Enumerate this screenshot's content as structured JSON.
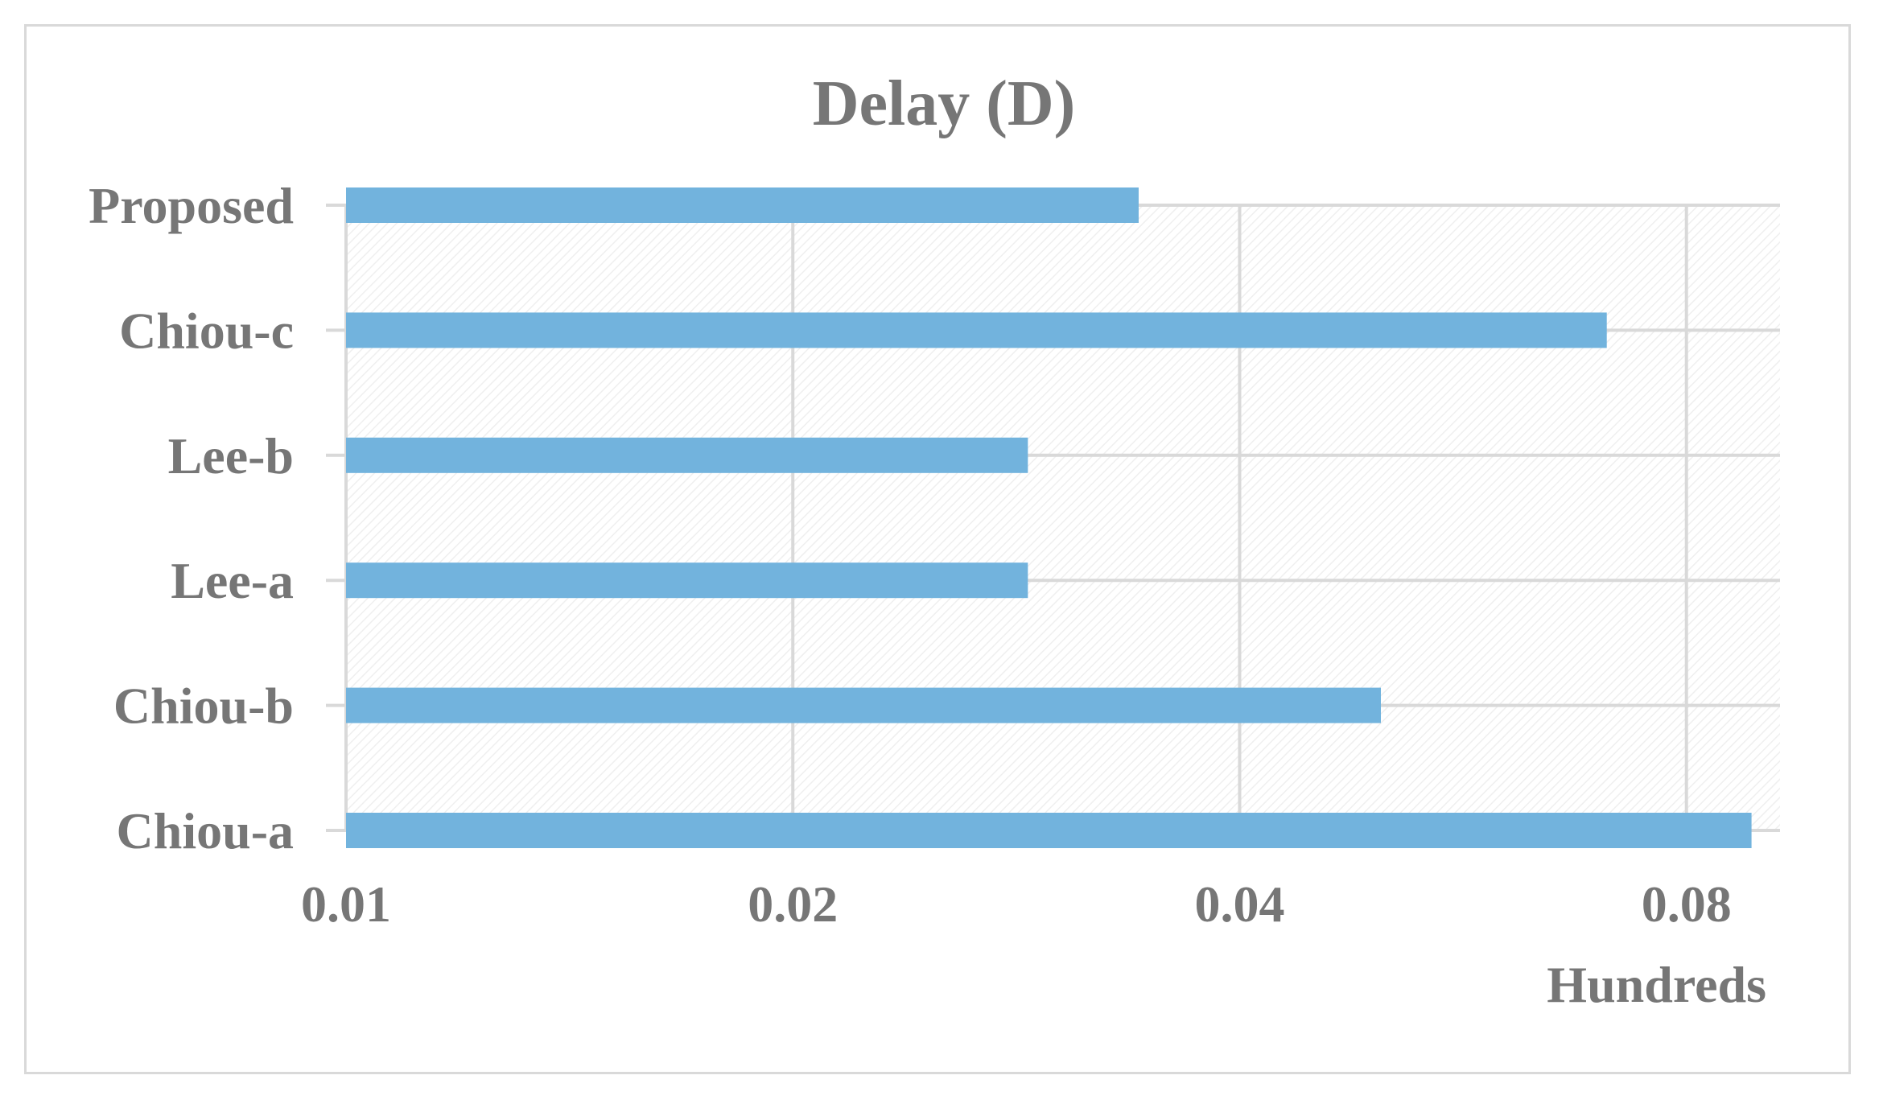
{
  "chart_data": {
    "type": "bar",
    "orientation": "horizontal",
    "title": "Delay (D)",
    "xlabel": "",
    "ylabel": "",
    "x_unit_label": "Hundreds",
    "x_scale": "log2",
    "xlim": [
      0.01,
      0.0925
    ],
    "x_ticks": [
      0.01,
      0.02,
      0.04,
      0.08
    ],
    "x_tick_labels": [
      "0.01",
      "0.02",
      "0.04",
      "0.08"
    ],
    "categories": [
      "Chiou-a",
      "Chiou-b",
      "Lee-a",
      "Lee-b",
      "Chiou-c",
      "Proposed"
    ],
    "values": [
      0.0885,
      0.0498,
      0.0288,
      0.0288,
      0.0707,
      0.0342
    ],
    "grid": true,
    "legend": "none",
    "colors": {
      "bar": "#72b3dd",
      "grid": "#d9d9d9",
      "text": "#767676",
      "frame": "#d9d9d9"
    }
  }
}
